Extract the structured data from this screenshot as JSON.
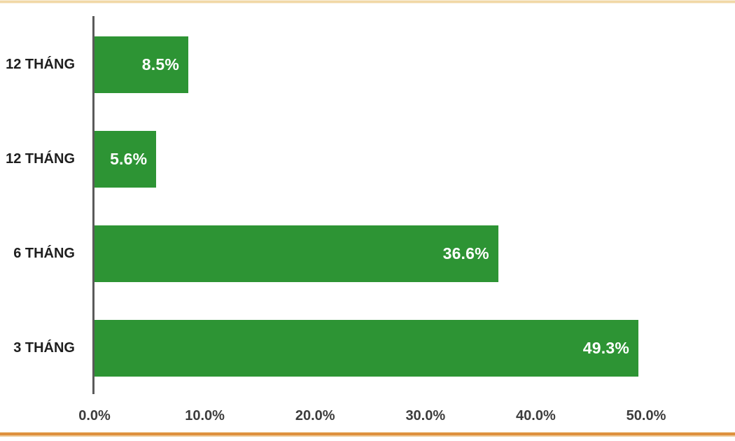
{
  "chart_data": {
    "type": "bar",
    "orientation": "horizontal",
    "title": "",
    "categories": [
      "12 THÁNG",
      "12 THÁNG",
      "6 THÁNG",
      "3 THÁNG"
    ],
    "values": [
      8.5,
      5.6,
      36.6,
      49.3
    ],
    "value_labels": [
      "8.5%",
      "5.6%",
      "36.6%",
      "49.3%"
    ],
    "x_ticks": [
      "0.0%",
      "10.0%",
      "20.0%",
      "30.0%",
      "40.0%",
      "50.0%"
    ],
    "x_tick_values": [
      0,
      10,
      20,
      30,
      40,
      50
    ],
    "xlim": [
      0,
      50
    ],
    "xlabel": "",
    "ylabel": "",
    "grid": false,
    "legend": false,
    "bar_color": "#2d9434",
    "value_label_color": "#ffffff",
    "category_label_color": "#1e1e1e",
    "tick_label_color": "#3d3d3d",
    "axis_line_color": "#5a5a5a"
  },
  "frame": {
    "top_border_color": "#f1d8a6",
    "bottom_border_color": "#de903d"
  }
}
